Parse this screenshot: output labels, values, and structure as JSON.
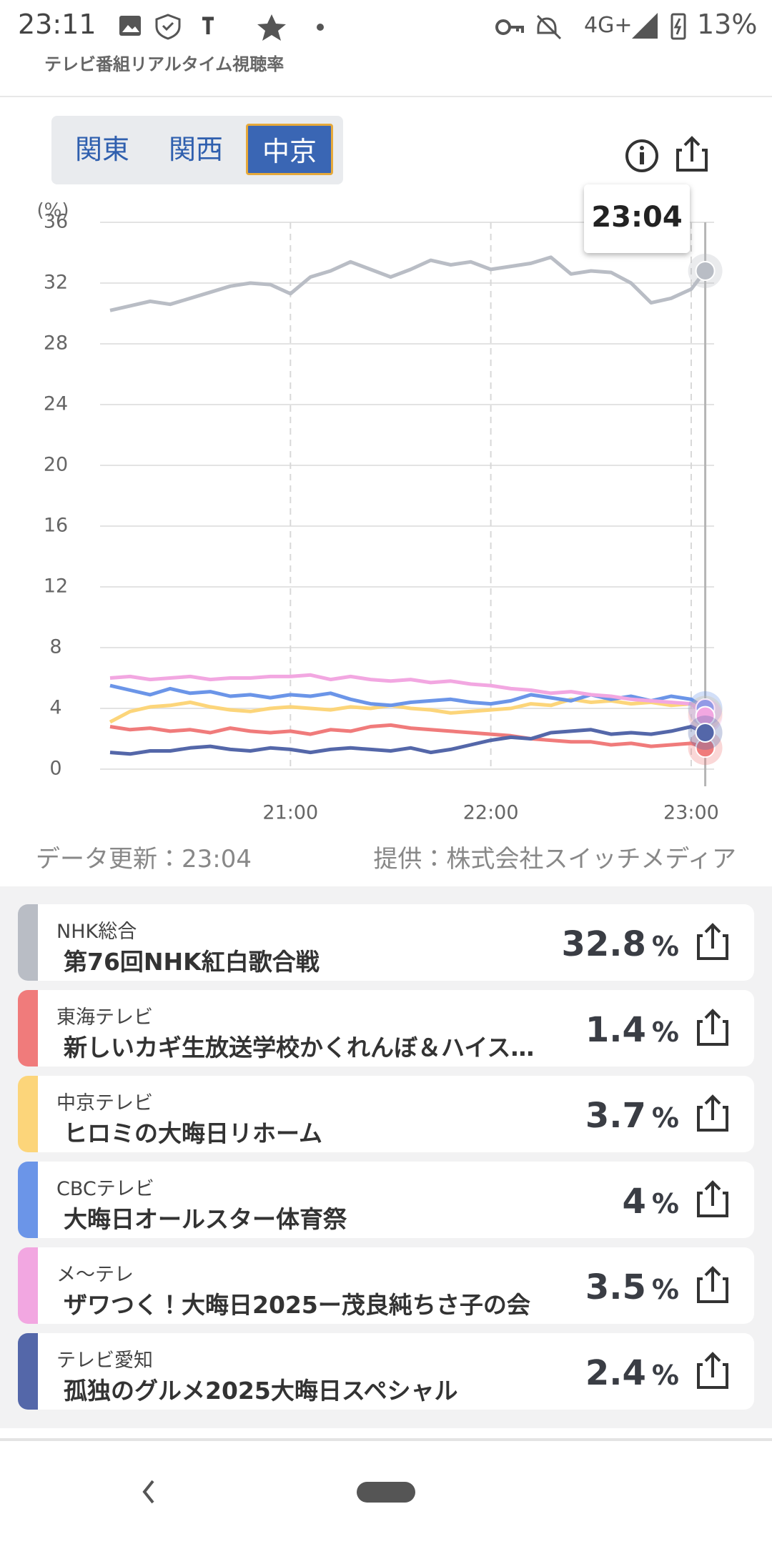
{
  "status_bar": {
    "time": "23:11",
    "network": "4G+",
    "battery": "13%"
  },
  "app_title": "テレビ番組リアルタイム視聴率",
  "tabs": [
    "関東",
    "関西",
    "中京"
  ],
  "active_tab": 2,
  "chart_data": {
    "type": "line",
    "y_label": "(%)",
    "tooltip": "23:04",
    "x": [
      20.1,
      20.2,
      20.3,
      20.4,
      20.5,
      20.6,
      20.7,
      20.8,
      20.9,
      21.0,
      21.1,
      21.2,
      21.3,
      21.4,
      21.5,
      21.6,
      21.7,
      21.8,
      21.9,
      22.0,
      22.1,
      22.2,
      22.3,
      22.4,
      22.5,
      22.6,
      22.7,
      22.8,
      22.9,
      23.0,
      23.07
    ],
    "xlim": [
      20.05,
      23.1
    ],
    "xticks": [
      {
        "value": 21,
        "label": "21:00"
      },
      {
        "value": 22,
        "label": "22:00"
      },
      {
        "value": 23,
        "label": "23:00"
      }
    ],
    "ylim": [
      0,
      36
    ],
    "yticks": [
      0,
      4,
      8,
      12,
      16,
      20,
      24,
      28,
      32,
      36
    ],
    "grid": true,
    "unit": "%",
    "series": [
      {
        "name": "NHK総合",
        "program": "第76回NHK紅白歌合戦",
        "color": "#b9bdc5",
        "values": [
          30.2,
          30.5,
          30.8,
          30.6,
          31.0,
          31.4,
          31.8,
          32.0,
          31.9,
          31.3,
          32.4,
          32.8,
          33.4,
          32.9,
          32.4,
          32.9,
          33.5,
          33.2,
          33.4,
          32.9,
          33.1,
          33.3,
          33.7,
          32.6,
          32.8,
          32.7,
          32.0,
          30.7,
          31.0,
          31.6,
          32.8
        ]
      },
      {
        "name": "東海テレビ",
        "program": "新しいカギ生放送学校かくれんぼ＆ハイス…",
        "color": "#f07b7b",
        "values": [
          2.8,
          2.6,
          2.7,
          2.5,
          2.6,
          2.4,
          2.7,
          2.5,
          2.4,
          2.5,
          2.3,
          2.6,
          2.5,
          2.8,
          2.9,
          2.7,
          2.6,
          2.5,
          2.4,
          2.3,
          2.2,
          2.0,
          1.9,
          1.8,
          1.8,
          1.6,
          1.7,
          1.5,
          1.6,
          1.7,
          1.4
        ]
      },
      {
        "name": "中京テレビ",
        "program": "ヒロミの大晦日リホーム",
        "color": "#fcd57a",
        "values": [
          3.1,
          3.8,
          4.1,
          4.2,
          4.4,
          4.1,
          3.9,
          3.8,
          4.0,
          4.1,
          4.0,
          3.9,
          4.1,
          4.0,
          4.2,
          4.0,
          3.9,
          3.7,
          3.8,
          3.9,
          4.0,
          4.3,
          4.2,
          4.6,
          4.4,
          4.5,
          4.3,
          4.4,
          4.2,
          4.3,
          3.7
        ]
      },
      {
        "name": "CBCテレビ",
        "program": "大晦日オールスター体育祭",
        "color": "#6b95e8",
        "values": [
          5.5,
          5.2,
          4.9,
          5.3,
          5.0,
          5.1,
          4.8,
          4.9,
          4.7,
          4.9,
          4.8,
          5.0,
          4.6,
          4.3,
          4.2,
          4.4,
          4.5,
          4.6,
          4.4,
          4.3,
          4.5,
          4.9,
          4.7,
          4.5,
          4.9,
          4.6,
          4.8,
          4.5,
          4.8,
          4.6,
          4.0
        ]
      },
      {
        "name": "メ〜テレ",
        "program": "ザワつく！大晦日2025ー茂良純ちさ子の会",
        "color": "#f2a7e1",
        "values": [
          6.0,
          6.1,
          5.9,
          6.0,
          6.1,
          5.9,
          6.0,
          6.0,
          6.1,
          6.1,
          6.2,
          5.9,
          6.1,
          5.9,
          5.8,
          5.9,
          5.7,
          5.8,
          5.6,
          5.5,
          5.3,
          5.2,
          5.0,
          5.1,
          4.9,
          4.8,
          4.6,
          4.5,
          4.4,
          4.3,
          3.5
        ]
      },
      {
        "name": "テレビ愛知",
        "program": "孤独のグルメ2025大晦日スペシャル",
        "color": "#5467a9",
        "values": [
          1.1,
          1.0,
          1.2,
          1.2,
          1.4,
          1.5,
          1.3,
          1.2,
          1.4,
          1.3,
          1.1,
          1.3,
          1.4,
          1.3,
          1.2,
          1.4,
          1.1,
          1.3,
          1.6,
          1.9,
          2.1,
          2.0,
          2.4,
          2.5,
          2.6,
          2.3,
          2.4,
          2.3,
          2.5,
          2.8,
          2.4
        ]
      }
    ]
  },
  "footer": {
    "updated": "データ更新：23:04",
    "provider": "提供：株式会社スイッチメディア"
  }
}
